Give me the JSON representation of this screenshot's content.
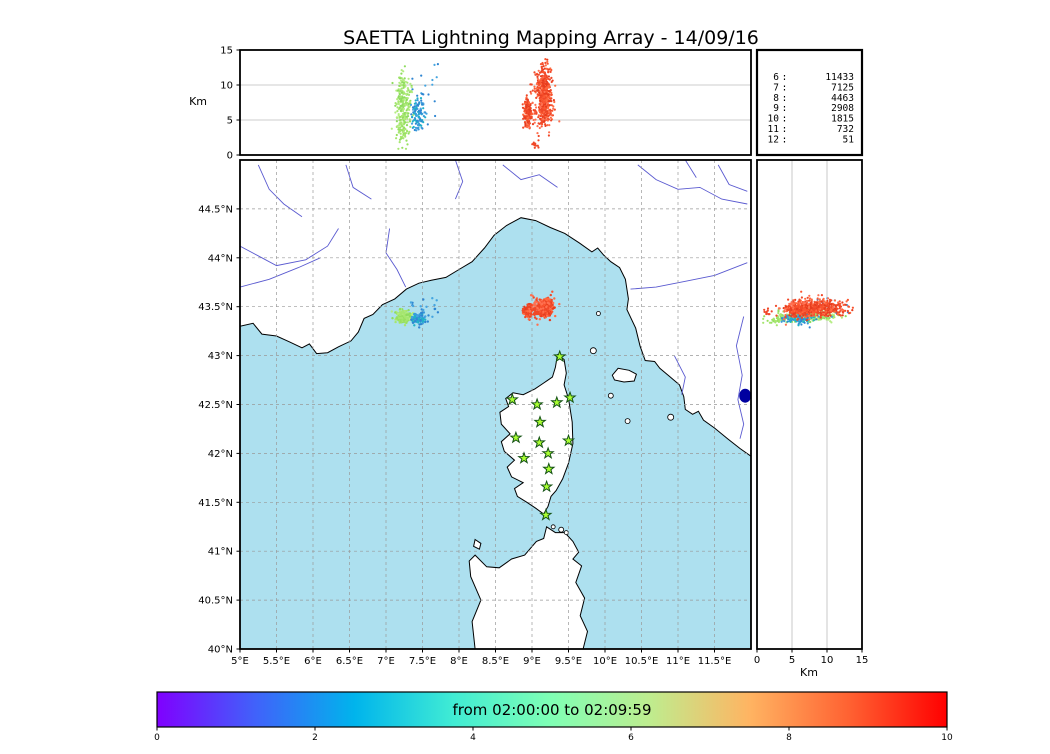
{
  "title": "SAETTA Lightning Mapping Array - 14/09/16",
  "panels": {
    "alt_lon": {
      "ylabel": "Km"
    },
    "alt_lat": {
      "xlabel": "Km"
    }
  },
  "legend": {
    "rows": [
      {
        "label": "6",
        "value": "11433",
        "highlight": false
      },
      {
        "label": "7",
        "value": "7125",
        "highlight": true
      },
      {
        "label": "8",
        "value": "4463",
        "highlight": false
      },
      {
        "label": "9",
        "value": "2908",
        "highlight": false
      },
      {
        "label": "10",
        "value": "1815",
        "highlight": false
      },
      {
        "label": "11",
        "value": "732",
        "highlight": false
      },
      {
        "label": "12",
        "value": "51",
        "highlight": false
      }
    ]
  },
  "colorbar": {
    "label": "from 02:00:00 to 02:09:59",
    "range": [
      0,
      10
    ],
    "ticks": [
      {
        "v": 0,
        "label": "0"
      },
      {
        "v": 2,
        "label": "2"
      },
      {
        "v": 4,
        "label": "4"
      },
      {
        "v": 6,
        "label": "6"
      },
      {
        "v": 8,
        "label": "8"
      },
      {
        "v": 10,
        "label": "10"
      }
    ],
    "gradient": [
      {
        "o": 0,
        "c": "#8000ff"
      },
      {
        "o": 0.125,
        "c": "#4062fa"
      },
      {
        "o": 0.25,
        "c": "#00b4ec"
      },
      {
        "o": 0.375,
        "c": "#40ecd4"
      },
      {
        "o": 0.5,
        "c": "#80ffb4"
      },
      {
        "o": 0.625,
        "c": "#bfec8e"
      },
      {
        "o": 0.75,
        "c": "#ffb462"
      },
      {
        "o": 0.875,
        "c": "#ff6232"
      },
      {
        "o": 1,
        "c": "#ff0000"
      }
    ]
  },
  "colors": {
    "sea": "#ade0ef",
    "land": "#ffffff",
    "coast": "#000000",
    "river": "#5a5ad0",
    "grid": "#999999",
    "panel_grid": "#bbbbbb",
    "star_fill": "#aaff32",
    "star_edge": "#145214",
    "legend_highlight": "#ee1100",
    "lake": "#0000a0"
  },
  "chart_data": {
    "type": "scatter",
    "title": "SAETTA Lightning Mapping Array - 14/09/16",
    "time_window": {
      "start": "02:00:00",
      "end": "02:09:59"
    },
    "axes": {
      "longitude": {
        "min": 5,
        "max": 12,
        "ticks": [
          {
            "v": 5,
            "label": "5°E"
          },
          {
            "v": 5.5,
            "label": "5.5°E"
          },
          {
            "v": 6,
            "label": "6°E"
          },
          {
            "v": 6.5,
            "label": "6.5°E"
          },
          {
            "v": 7,
            "label": "7°E"
          },
          {
            "v": 7.5,
            "label": "7.5°E"
          },
          {
            "v": 8,
            "label": "8°E"
          },
          {
            "v": 8.5,
            "label": "8.5°E"
          },
          {
            "v": 9,
            "label": "9°E"
          },
          {
            "v": 9.5,
            "label": "9.5°E"
          },
          {
            "v": 10,
            "label": "10°E"
          },
          {
            "v": 10.5,
            "label": "10.5°E"
          },
          {
            "v": 11,
            "label": "11°E"
          },
          {
            "v": 11.5,
            "label": "11.5°E"
          }
        ]
      },
      "latitude": {
        "min": 40,
        "max": 45,
        "ticks": [
          {
            "v": 40,
            "label": "40°N"
          },
          {
            "v": 40.5,
            "label": "40.5°N"
          },
          {
            "v": 41,
            "label": "41°N"
          },
          {
            "v": 41.5,
            "label": "41.5°N"
          },
          {
            "v": 42,
            "label": "42°N"
          },
          {
            "v": 42.5,
            "label": "42.5°N"
          },
          {
            "v": 43,
            "label": "43°N"
          },
          {
            "v": 43.5,
            "label": "43.5°N"
          },
          {
            "v": 44,
            "label": "44°N"
          },
          {
            "v": 44.5,
            "label": "44.5°N"
          }
        ]
      },
      "altitude_km": {
        "min": 0,
        "max": 15,
        "label": "Km",
        "ticks": [
          {
            "v": 0,
            "label": "0"
          },
          {
            "v": 5,
            "label": "5"
          },
          {
            "v": 10,
            "label": "10"
          },
          {
            "v": 15,
            "label": "15"
          }
        ]
      }
    },
    "clusters": [
      {
        "name": "west-cell-green",
        "colors": [
          "#a6e670",
          "#b4ec82",
          "#8edc5e"
        ],
        "count": 230,
        "lon": 7.24,
        "lon_sd": 0.05,
        "lat": 43.4,
        "lat_sd": 0.028,
        "alt": 7.0,
        "alt_sd": 2.2,
        "alt_min": 3.0,
        "alt_max": 13.5
      },
      {
        "name": "west-cell-green-low",
        "colors": [
          "#a6e670",
          "#97e060"
        ],
        "count": 45,
        "lon": 7.22,
        "lon_sd": 0.04,
        "lat": 43.37,
        "lat_sd": 0.02,
        "alt": 3.0,
        "alt_sd": 1.2,
        "alt_min": 0.8,
        "alt_max": 6.0
      },
      {
        "name": "west-cell-blue",
        "colors": [
          "#2f86d2",
          "#3a9bdc",
          "#20b2c8"
        ],
        "count": 100,
        "lon": 7.44,
        "lon_sd": 0.045,
        "lat": 43.375,
        "lat_sd": 0.022,
        "alt": 5.8,
        "alt_sd": 1.3,
        "alt_min": 3.5,
        "alt_max": 8.5
      },
      {
        "name": "blue-scatter",
        "colors": [
          "#2f86d2",
          "#45a5e0"
        ],
        "count": 25,
        "lon": 7.5,
        "lon_sd": 0.12,
        "lat": 43.47,
        "lat_sd": 0.06,
        "alt": 8.0,
        "alt_sd": 3.0,
        "alt_min": 1.0,
        "alt_max": 14.0
      },
      {
        "name": "east-cell-red-west-column",
        "colors": [
          "#f04828",
          "#e63c1e",
          "#ff6a40"
        ],
        "count": 160,
        "lon": 8.94,
        "lon_sd": 0.025,
        "lat": 43.455,
        "lat_sd": 0.028,
        "alt": 6.0,
        "alt_sd": 1.2,
        "alt_min": 3.8,
        "alt_max": 8.6
      },
      {
        "name": "east-cell-red-main-column",
        "colors": [
          "#f04828",
          "#e63c1e",
          "#ff6a40",
          "#fa5530"
        ],
        "count": 480,
        "lon": 9.17,
        "lon_sd": 0.05,
        "lat": 43.49,
        "lat_sd": 0.04,
        "alt": 8.6,
        "alt_sd": 2.3,
        "alt_min": 4.0,
        "alt_max": 13.8
      },
      {
        "name": "east-cell-red-low",
        "colors": [
          "#f04828"
        ],
        "count": 10,
        "lon": 9.05,
        "lon_sd": 0.03,
        "lat": 43.46,
        "lat_sd": 0.02,
        "alt": 1.5,
        "alt_sd": 0.6,
        "alt_min": 0.4,
        "alt_max": 2.6
      },
      {
        "name": "east-cell-red-sparse",
        "colors": [
          "#f04828",
          "#ff7050"
        ],
        "count": 70,
        "lon": 9.12,
        "lon_sd": 0.09,
        "lat": 43.5,
        "lat_sd": 0.05,
        "alt": 7.0,
        "alt_sd": 3.5,
        "alt_min": 0.5,
        "alt_max": 14.5
      }
    ],
    "stations": [
      [
        9.38,
        42.99
      ],
      [
        8.73,
        42.55
      ],
      [
        9.07,
        42.5
      ],
      [
        9.34,
        42.52
      ],
      [
        9.52,
        42.57
      ],
      [
        9.11,
        42.32
      ],
      [
        8.78,
        42.16
      ],
      [
        9.1,
        42.11
      ],
      [
        9.5,
        42.13
      ],
      [
        8.89,
        41.95
      ],
      [
        9.22,
        42.0
      ],
      [
        9.23,
        41.84
      ],
      [
        9.2,
        41.66
      ],
      [
        9.19,
        41.37
      ]
    ]
  }
}
